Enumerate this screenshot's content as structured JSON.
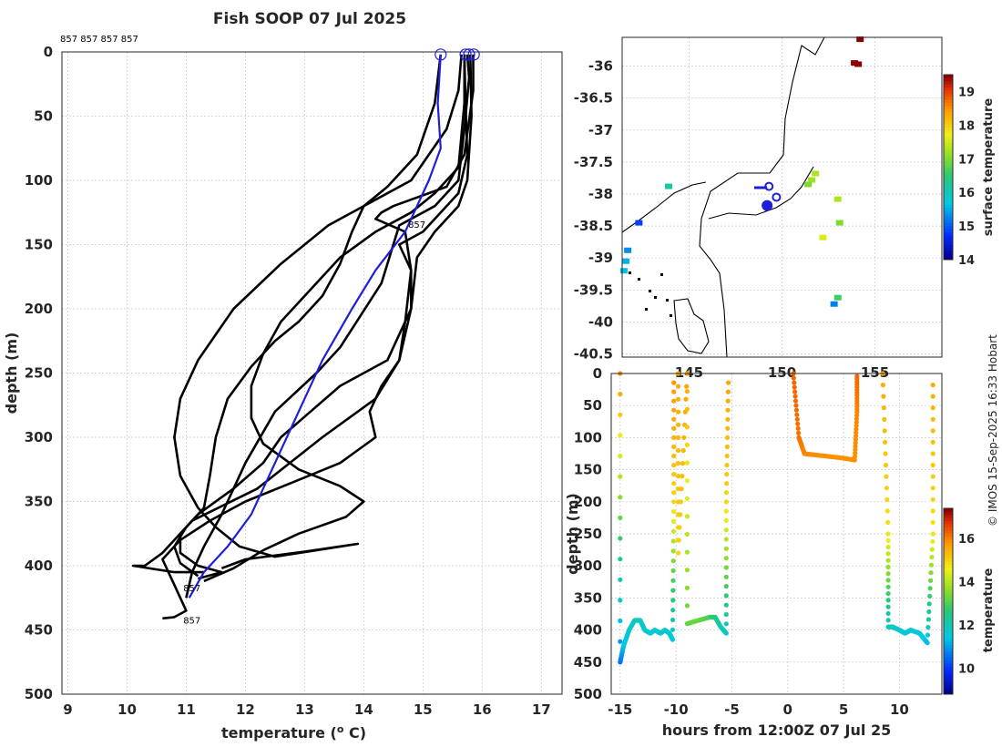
{
  "title": "Fish SOOP 07 Jul 2025",
  "watermark": "© IMOS 15-Sep-2025 16:33 Hobart",
  "chart_data": [
    {
      "type": "line",
      "name": "temperature-depth-profiles",
      "xlabel": "temperature (",
      "xlabel_sup": "o",
      "xlabel_suffix": " C)",
      "ylabel": "depth (m)",
      "xlim": [
        8.9,
        17.35
      ],
      "ylim": [
        0,
        500
      ],
      "y_reversed": true,
      "grid": true,
      "xticks": [
        9,
        10,
        11,
        12,
        13,
        14,
        15,
        16,
        17
      ],
      "yticks": [
        0,
        50,
        100,
        150,
        200,
        250,
        300,
        350,
        400,
        450,
        500
      ],
      "top_label": "857 857 857 857",
      "inline_labels": [
        {
          "text": "857",
          "x": 14.75,
          "y": 137
        },
        {
          "text": "857",
          "x": 10.95,
          "y": 420
        },
        {
          "text": "857",
          "x": 10.95,
          "y": 445
        }
      ],
      "series": [
        {
          "name": "profile-1",
          "color": "#000000",
          "points": [
            [
              15.75,
              2
            ],
            [
              15.78,
              20
            ],
            [
              15.7,
              60
            ],
            [
              15.6,
              100
            ],
            [
              15.2,
              120
            ],
            [
              14.6,
              135
            ],
            [
              14.5,
              150
            ],
            [
              14.3,
              180
            ],
            [
              13.6,
              230
            ],
            [
              13.2,
              250
            ],
            [
              12.5,
              280
            ],
            [
              12.0,
              320
            ],
            [
              11.6,
              360
            ],
            [
              11.3,
              385
            ],
            [
              11.1,
              405
            ],
            [
              11.0,
              425
            ]
          ]
        },
        {
          "name": "profile-2",
          "color": "#000000",
          "points": [
            [
              15.85,
              2
            ],
            [
              15.85,
              30
            ],
            [
              15.7,
              80
            ],
            [
              15.4,
              105
            ],
            [
              14.5,
              120
            ],
            [
              14.3,
              125
            ],
            [
              14.2,
              130
            ],
            [
              14.7,
              140
            ],
            [
              14.8,
              170
            ],
            [
              14.7,
              210
            ],
            [
              14.6,
              240
            ],
            [
              14.2,
              270
            ],
            [
              13.3,
              300
            ],
            [
              12.2,
              340
            ],
            [
              11.1,
              365
            ],
            [
              10.6,
              390
            ],
            [
              10.3,
              400
            ],
            [
              10.1,
              400
            ],
            [
              10.8,
              405
            ],
            [
              11.3,
              405
            ]
          ]
        },
        {
          "name": "profile-3",
          "color": "#000000",
          "points": [
            [
              15.7,
              2
            ],
            [
              15.72,
              40
            ],
            [
              15.75,
              80
            ],
            [
              15.6,
              110
            ],
            [
              15.0,
              140
            ],
            [
              14.6,
              150
            ],
            [
              14.8,
              170
            ],
            [
              14.8,
              200
            ],
            [
              14.4,
              240
            ],
            [
              13.6,
              260
            ],
            [
              13.1,
              280
            ],
            [
              12.6,
              300
            ],
            [
              12.3,
              320
            ],
            [
              11.8,
              340
            ],
            [
              11.2,
              360
            ],
            [
              10.9,
              375
            ],
            [
              10.9,
              390
            ],
            [
              11.2,
              400
            ],
            [
              11.6,
              405
            ],
            [
              11.2,
              410
            ]
          ]
        },
        {
          "name": "profile-4",
          "color": "#000000",
          "points": [
            [
              15.65,
              2
            ],
            [
              15.6,
              30
            ],
            [
              15.4,
              60
            ],
            [
              15.1,
              80
            ],
            [
              14.8,
              100
            ],
            [
              14.2,
              115
            ],
            [
              13.4,
              135
            ],
            [
              12.6,
              165
            ],
            [
              11.8,
              200
            ],
            [
              11.2,
              240
            ],
            [
              10.9,
              270
            ],
            [
              10.8,
              300
            ],
            [
              10.9,
              330
            ],
            [
              11.2,
              355
            ],
            [
              11.5,
              370
            ],
            [
              11.9,
              385
            ],
            [
              12.5,
              393
            ],
            [
              13.9,
              383
            ],
            [
              13.0,
              389
            ],
            [
              12.0,
              395
            ],
            [
              11.6,
              402
            ]
          ]
        },
        {
          "name": "profile-5",
          "color": "#000000",
          "points": [
            [
              15.8,
              2
            ],
            [
              15.82,
              50
            ],
            [
              15.75,
              100
            ],
            [
              15.6,
              120
            ],
            [
              15.2,
              140
            ],
            [
              14.9,
              160
            ],
            [
              14.8,
              200
            ],
            [
              14.6,
              240
            ],
            [
              14.3,
              260
            ],
            [
              14.1,
              280
            ],
            [
              14.2,
              300
            ],
            [
              13.6,
              320
            ],
            [
              12.8,
              335
            ],
            [
              12.0,
              350
            ],
            [
              11.4,
              365
            ],
            [
              10.9,
              380
            ],
            [
              10.6,
              395
            ],
            [
              10.8,
              415
            ],
            [
              11.0,
              435
            ],
            [
              10.8,
              440
            ],
            [
              10.6,
              441
            ]
          ]
        },
        {
          "name": "profile-6",
          "color": "#000000",
          "points": [
            [
              15.3,
              2
            ],
            [
              15.2,
              40
            ],
            [
              14.9,
              80
            ],
            [
              14.4,
              105
            ],
            [
              14.0,
              120
            ],
            [
              13.8,
              140
            ],
            [
              13.6,
              165
            ],
            [
              13.3,
              190
            ],
            [
              12.9,
              210
            ],
            [
              12.5,
              225
            ],
            [
              12.1,
              245
            ],
            [
              11.7,
              270
            ],
            [
              11.5,
              300
            ],
            [
              11.4,
              330
            ],
            [
              11.3,
              355
            ],
            [
              11.0,
              370
            ],
            [
              10.8,
              385
            ],
            [
              10.9,
              398
            ],
            [
              11.2,
              408
            ]
          ]
        },
        {
          "name": "profile-7",
          "color": "#000000",
          "points": [
            [
              15.7,
              2
            ],
            [
              15.7,
              40
            ],
            [
              15.6,
              90
            ],
            [
              15.2,
              110
            ],
            [
              14.8,
              125
            ],
            [
              14.2,
              140
            ],
            [
              13.6,
              160
            ],
            [
              13.1,
              185
            ],
            [
              12.6,
              210
            ],
            [
              12.3,
              235
            ],
            [
              12.1,
              260
            ],
            [
              12.1,
              285
            ],
            [
              12.3,
              305
            ],
            [
              12.9,
              325
            ],
            [
              13.6,
              338
            ],
            [
              14.0,
              350
            ],
            [
              13.7,
              362
            ],
            [
              12.9,
              375
            ],
            [
              12.3,
              388
            ],
            [
              11.8,
              402
            ],
            [
              11.3,
              412
            ]
          ]
        },
        {
          "name": "mean-profile",
          "color": "#1f1fd6",
          "points": [
            [
              15.3,
              2
            ],
            [
              15.25,
              40
            ],
            [
              15.3,
              75
            ],
            [
              15.1,
              100
            ],
            [
              14.7,
              140
            ],
            [
              14.2,
              170
            ],
            [
              13.8,
              200
            ],
            [
              13.3,
              240
            ],
            [
              13.0,
              270
            ],
            [
              12.7,
              300
            ],
            [
              12.4,
              330
            ],
            [
              12.1,
              360
            ],
            [
              11.7,
              385
            ],
            [
              11.3,
              405
            ],
            [
              11.05,
              425
            ]
          ]
        }
      ],
      "markers": [
        {
          "x": 15.3,
          "y": 2
        },
        {
          "x": 15.72,
          "y": 2
        },
        {
          "x": 15.78,
          "y": 2
        },
        {
          "x": 15.86,
          "y": 2
        }
      ]
    },
    {
      "type": "scatter",
      "name": "surface-temperature-map",
      "xlim": [
        141.4,
        158.6
      ],
      "ylim": [
        -40.55,
        -35.55
      ],
      "xticks": [
        145,
        150,
        155
      ],
      "xtick_labels": [
        "145",
        "150",
        "155"
      ],
      "yticks": [
        -36,
        -36.5,
        -37,
        -37.5,
        -38,
        -38.5,
        -39,
        -39.5,
        -40,
        -40.5
      ],
      "grid": true,
      "colorbar": {
        "label": "surface temperature",
        "range": [
          14,
          19.5
        ],
        "ticks": [
          14,
          15,
          16,
          17,
          18,
          19
        ]
      },
      "track_points": [
        {
          "lon": 153.9,
          "lat": -35.95,
          "t": 19.5
        },
        {
          "lon": 154.1,
          "lat": -35.97,
          "t": 19.5
        },
        {
          "lon": 154.2,
          "lat": -35.58,
          "t": 19.5
        },
        {
          "lon": 143.9,
          "lat": -37.88,
          "t": 16.2
        },
        {
          "lon": 151.8,
          "lat": -37.68,
          "t": 17.3
        },
        {
          "lon": 151.6,
          "lat": -37.78,
          "t": 17.2
        },
        {
          "lon": 151.4,
          "lat": -37.85,
          "t": 17.0
        },
        {
          "lon": 153.0,
          "lat": -38.08,
          "t": 17.3
        },
        {
          "lon": 152.2,
          "lat": -38.68,
          "t": 17.6
        },
        {
          "lon": 153.1,
          "lat": -38.45,
          "t": 17.0
        },
        {
          "lon": 152.8,
          "lat": -39.72,
          "t": 15.2
        },
        {
          "lon": 153.0,
          "lat": -39.62,
          "t": 16.6
        },
        {
          "lon": 142.3,
          "lat": -38.45,
          "t": 14.8
        },
        {
          "lon": 141.7,
          "lat": -38.88,
          "t": 15.3
        },
        {
          "lon": 141.6,
          "lat": -39.05,
          "t": 15.5
        },
        {
          "lon": 141.5,
          "lat": -39.2,
          "t": 15.6
        }
      ],
      "track_path": [
        [
          148.5,
          -37.9
        ],
        [
          149.2,
          -37.9
        ]
      ],
      "markers": [
        {
          "lon": 149.3,
          "lat": -37.88
        },
        {
          "lon": 149.7,
          "lat": -38.05
        },
        {
          "lon": 149.2,
          "lat": -38.18
        }
      ]
    },
    {
      "type": "scatter",
      "name": "depth-time-section",
      "xlabel": "hours from 12:00Z 07 Jul 25",
      "ylabel": "depth (m)",
      "xlim": [
        -15.8,
        13.8
      ],
      "ylim": [
        0,
        500
      ],
      "y_reversed": true,
      "xticks": [
        -15,
        -10,
        -5,
        0,
        5,
        10
      ],
      "yticks": [
        0,
        50,
        100,
        150,
        200,
        250,
        300,
        350,
        400,
        450,
        500
      ],
      "grid": true,
      "colorbar": {
        "label": "temperature",
        "range": [
          8.8,
          17.4
        ],
        "ticks": [
          10,
          12,
          14,
          16
        ]
      },
      "casts": [
        {
          "x": [
            -15,
            -15,
            -14.7,
            -14.2,
            -13.7,
            -13.2,
            -12.8,
            -12.3,
            -11.9,
            -11.4,
            -11.0,
            -10.6,
            -10.3,
            -10.2,
            -10.2
          ],
          "y": [
            0,
            450,
            425,
            400,
            385,
            385,
            400,
            405,
            400,
            405,
            400,
            405,
            415,
            200,
            0
          ],
          "t": [
            15.9,
            10.5,
            11.3,
            11.6,
            11.8,
            11.8,
            11.7,
            11.6,
            11.7,
            11.6,
            11.7,
            11.6,
            11.5,
            15.0,
            15.9
          ]
        },
        {
          "x": [
            -9.8,
            -9.8,
            -9.0,
            -9.0,
            -8.0,
            -7.0,
            -6.5,
            -6.0,
            -5.5,
            -5.5,
            -5.3
          ],
          "y": [
            0,
            280,
            0,
            390,
            385,
            380,
            380,
            395,
            405,
            200,
            0
          ],
          "t": [
            15.6,
            15.0,
            15.7,
            13.2,
            13.3,
            13.0,
            12.6,
            12.0,
            11.8,
            15.0,
            15.7
          ]
        },
        {
          "x": [
            0.5,
            1.0,
            1.5,
            3.0,
            5.0,
            6.0,
            6.2,
            6.2
          ],
          "y": [
            0,
            100,
            125,
            128,
            132,
            135,
            60,
            0
          ],
          "t": [
            16.3,
            16.2,
            16.0,
            15.9,
            15.9,
            15.9,
            16.0,
            16.3
          ]
        },
        {
          "x": [
            8.5,
            9.0,
            9.0,
            9.4,
            10.0,
            10.5,
            11.0,
            11.8,
            12.5,
            13.0,
            13.0
          ],
          "y": [
            0,
            250,
            395,
            395,
            400,
            405,
            400,
            405,
            420,
            250,
            0
          ],
          "t": [
            15.6,
            14.8,
            11.8,
            11.9,
            11.6,
            11.5,
            11.6,
            11.5,
            11.3,
            14.8,
            15.6
          ]
        }
      ]
    }
  ]
}
